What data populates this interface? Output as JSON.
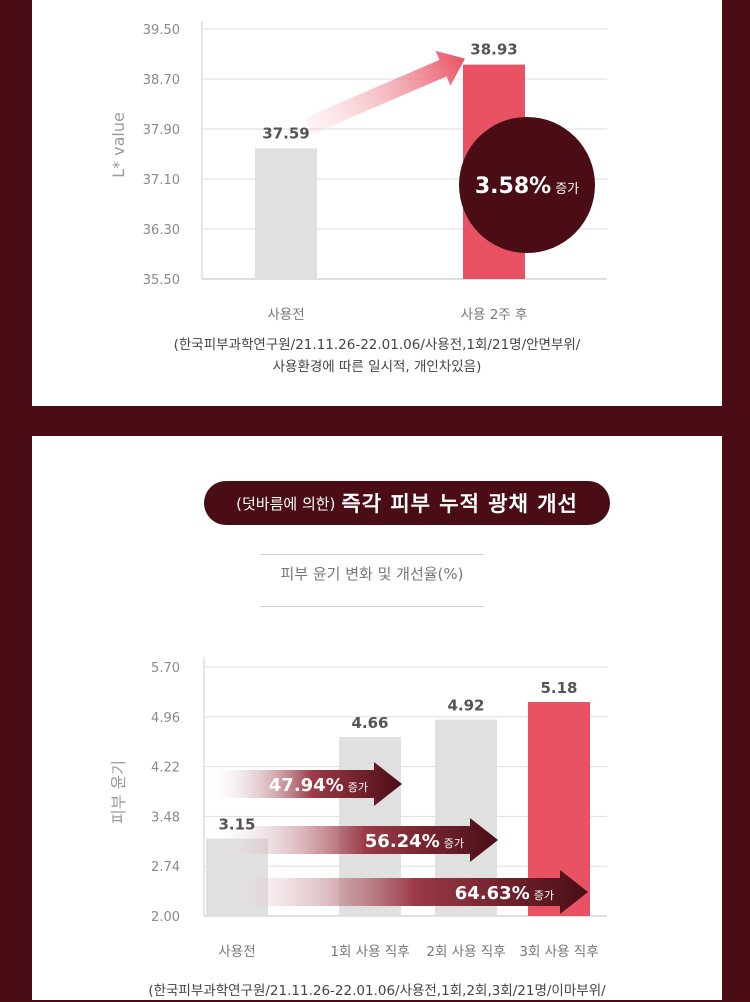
{
  "chart_data": [
    {
      "type": "bar",
      "ylabel": "L* value",
      "ylim": [
        35.5,
        39.5
      ],
      "yticks": [
        "39.50",
        "38.70",
        "37.90",
        "37.10",
        "36.30",
        "35.50"
      ],
      "categories": [
        "사용전",
        "사용 2주 후"
      ],
      "values": [
        37.59,
        38.93
      ],
      "value_labels": [
        "37.59",
        "38.93"
      ],
      "bar_colors": [
        "#e0e0e0",
        "#e85263"
      ],
      "annotation": {
        "value": "3.58%",
        "suffix": "증가"
      },
      "grid": true
    },
    {
      "type": "bar",
      "ylabel": "피부 윤기",
      "ylim": [
        2.0,
        5.7
      ],
      "yticks": [
        "5.70",
        "4.96",
        "4.22",
        "3.48",
        "2.74",
        "2.00"
      ],
      "categories": [
        "사용전",
        "1회 사용 직후",
        "2회 사용 직후",
        "3회 사용 직후"
      ],
      "values": [
        3.15,
        4.66,
        4.92,
        5.18
      ],
      "value_labels": [
        "3.15",
        "4.66",
        "4.92",
        "5.18"
      ],
      "bar_colors": [
        "#e0e0e0",
        "#e0e0e0",
        "#e0e0e0",
        "#e85263"
      ],
      "arrows": [
        {
          "value": "47.94%",
          "suffix": "증가",
          "target_index": 1
        },
        {
          "value": "56.24%",
          "suffix": "증가",
          "target_index": 2
        },
        {
          "value": "64.63%",
          "suffix": "증가",
          "target_index": 3
        }
      ],
      "grid": true
    }
  ],
  "panel1": {
    "source_line1": "(한국피부과학연구원/21.11.26-22.01.06/사용전,1회/21명/안면부위/",
    "source_line2": "사용환경에 따른 일시적, 개인차있음)"
  },
  "panel2": {
    "pill_small": "(덧바름에 의한)",
    "pill_big": "즉각 피부 누적 광채 개선",
    "subtitle": "피부 윤기 변화 및 개선율(%)",
    "source_line1": "(한국피부과학연구원/21.11.26-22.01.06/사용전,1회,2회,3회/21명/이마부위/"
  },
  "colors": {
    "maroon": "#4a0d16",
    "accent": "#e85263",
    "bar_gray": "#e0e0e0"
  }
}
